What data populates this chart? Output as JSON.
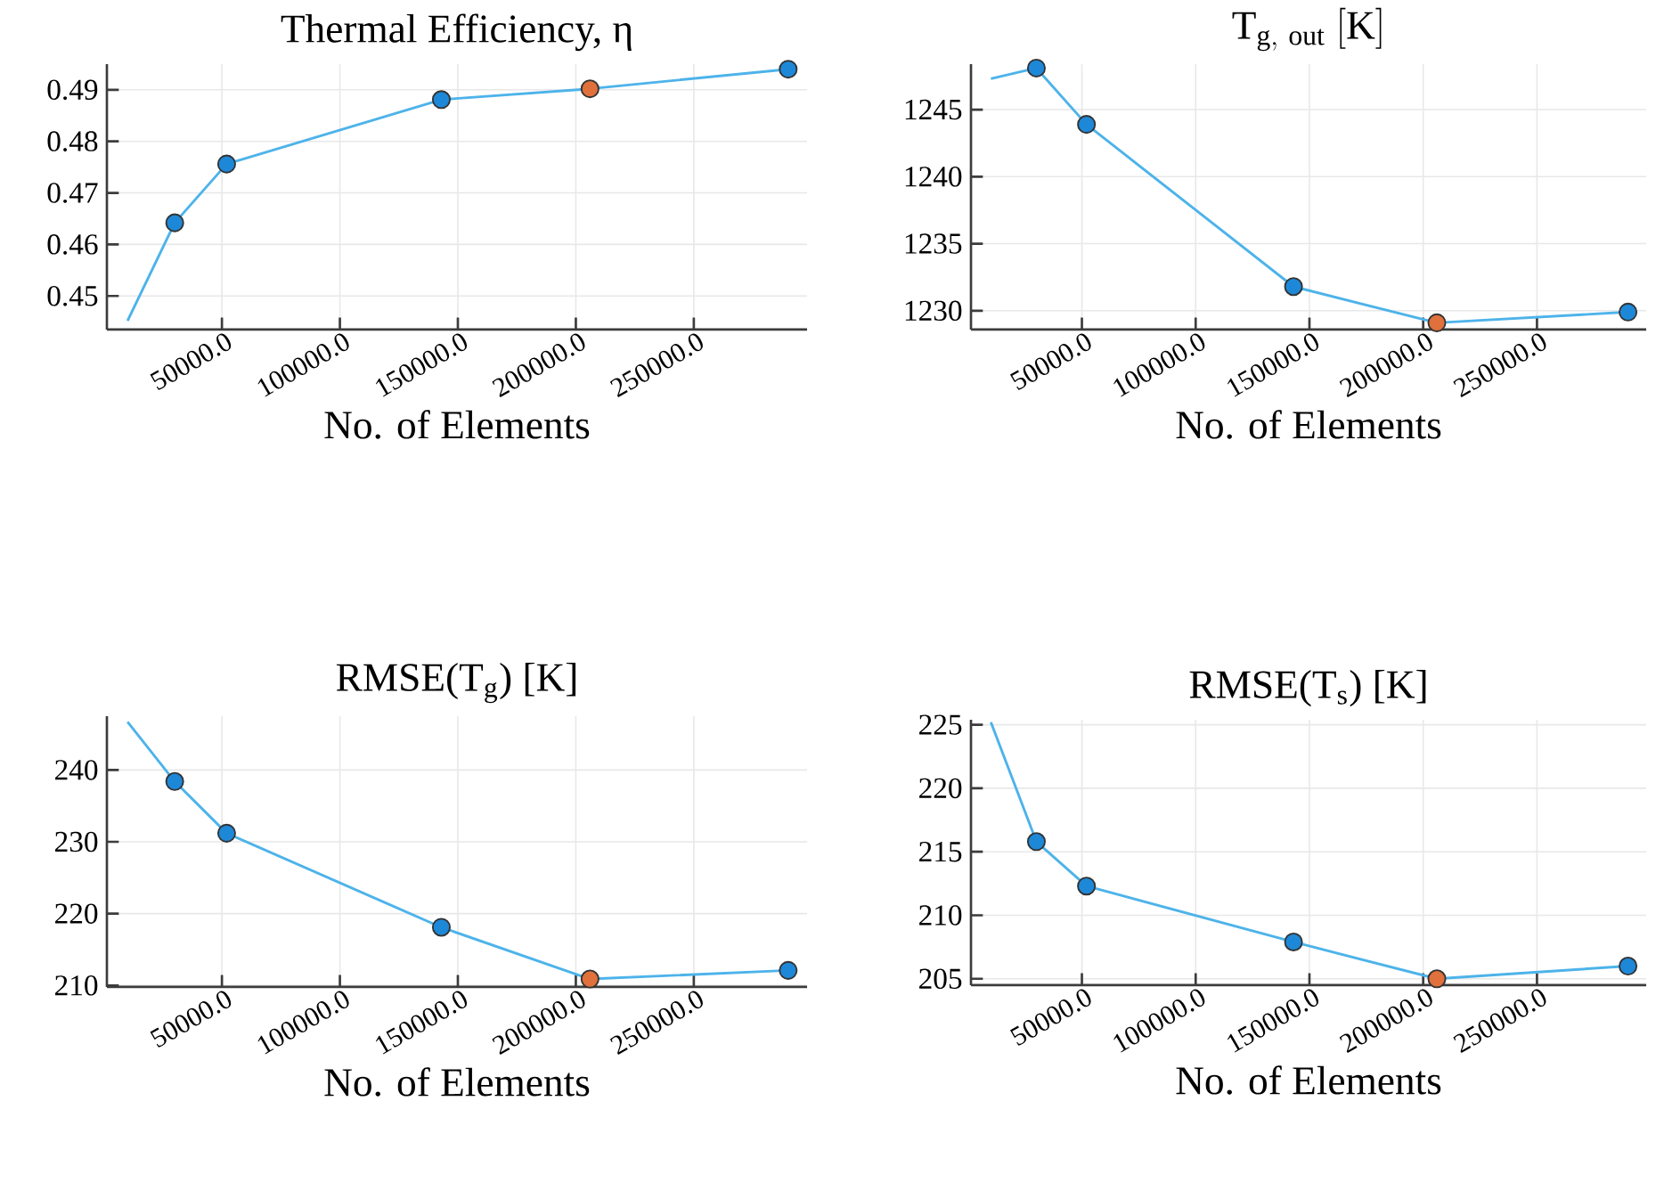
{
  "chart_data": [
    {
      "type": "line",
      "title": "Thermal Efficiency, η",
      "xlabel": "No. of Elements",
      "xlim": [
        1250,
        298000
      ],
      "ylim": [
        0.4435,
        0.495
      ],
      "grid": true,
      "xticks": [
        {
          "value": 50000,
          "label": "50000.0"
        },
        {
          "value": 100000,
          "label": "100000.0"
        },
        {
          "value": 150000,
          "label": "150000.0"
        },
        {
          "value": 200000,
          "label": "200000.0"
        },
        {
          "value": 250000,
          "label": "250000.0"
        }
      ],
      "yticks": [
        0.45,
        0.46,
        0.47,
        0.48,
        0.49
      ],
      "series": [
        {
          "color": "#4db3ea",
          "x": [
            10000,
            30000,
            52000,
            143000,
            206000,
            290000
          ],
          "values": [
            0.4452,
            0.4642,
            0.4756,
            0.4881,
            0.4902,
            0.494
          ]
        },
        {
          "type": "scatter",
          "marker": "circle",
          "color": "#1e88d8",
          "x": [
            30000,
            52000,
            143000,
            290000
          ],
          "values": [
            0.4642,
            0.4756,
            0.4881,
            0.494
          ]
        },
        {
          "type": "scatter",
          "marker": "circle",
          "color": "#e0703c",
          "x": [
            206000
          ],
          "values": [
            0.4902
          ]
        }
      ]
    },
    {
      "type": "line",
      "title": "\\mathrm{T}_{\\mathrm{g,\\ out}}\\ [\\mathrm{K}]",
      "xlabel": "No. of Elements",
      "xlim": [
        1250,
        298000
      ],
      "ylim": [
        1228.6,
        1248.4
      ],
      "grid": true,
      "xticks": [
        {
          "value": 50000,
          "label": "50000.0"
        },
        {
          "value": 100000,
          "label": "100000.0"
        },
        {
          "value": 150000,
          "label": "150000.0"
        },
        {
          "value": 200000,
          "label": "200000.0"
        },
        {
          "value": 250000,
          "label": "250000.0"
        }
      ],
      "yticks": [
        1230,
        1235,
        1240,
        1245
      ],
      "series": [
        {
          "type": "line",
          "color": "#4db3ea",
          "x": [
            10000,
            30000,
            52000,
            143000,
            206000,
            290000
          ],
          "values": [
            1247.3,
            1248.1,
            1243.9,
            1231.8,
            1229.1,
            1229.9
          ]
        },
        {
          "type": "scatter",
          "marker": "circle",
          "color": "#1e88d8",
          "x": [
            30000,
            52000,
            143000,
            290000
          ],
          "values": [
            1248.1,
            1243.9,
            1231.8,
            1229.9
          ]
        },
        {
          "type": "scatter",
          "marker": "circle",
          "color": "#e0703c",
          "x": [
            206000
          ],
          "values": [
            1229.1
          ]
        }
      ]
    },
    {
      "type": "line",
      "title": "RMSE(T$_{g}$) [K]",
      "xlabel": "No. of Elements",
      "xlim": [
        1250,
        298000
      ],
      "ylim": [
        209.8,
        247.5
      ],
      "grid": true,
      "xticks": [
        {
          "value": 50000,
          "label": "50000.0"
        },
        {
          "value": 100000,
          "label": "100000.0"
        },
        {
          "value": 150000,
          "label": "150000.0"
        },
        {
          "value": 200000,
          "label": "200000.0"
        },
        {
          "value": 250000,
          "label": "250000.0"
        }
      ],
      "yticks": [
        210,
        220,
        230,
        240
      ],
      "series": [
        {
          "type": "line",
          "color": "#4db3ea",
          "x": [
            10000,
            30000,
            52000,
            143000,
            206000,
            290000
          ],
          "values": [
            246.7,
            238.4,
            231.2,
            218.1,
            210.9,
            212.1
          ]
        },
        {
          "type": "scatter",
          "marker": "circle",
          "color": "#1e88d8",
          "x": [
            30000,
            52000,
            143000,
            290000
          ],
          "values": [
            238.4,
            231.2,
            218.1,
            212.1
          ]
        },
        {
          "type": "scatter",
          "marker": "circle",
          "color": "#e0703c",
          "x": [
            206000
          ],
          "values": [
            210.9
          ]
        }
      ]
    },
    {
      "type": "line",
      "title": "RMSE(T$_{s}$) [K]",
      "xlabel": "No. of Elements",
      "xlim": [
        1250,
        298000
      ],
      "ylim": [
        204.5,
        225.4
      ],
      "grid": true,
      "xticks": [
        {
          "value": 50000,
          "label": "50000.0"
        },
        {
          "value": 100000,
          "label": "100000.0"
        },
        {
          "value": 150000,
          "label": "150000.0"
        },
        {
          "value": 200000,
          "label": "200000.0"
        },
        {
          "value": 250000,
          "label": "250000.0"
        }
      ],
      "yticks": [
        205,
        210,
        215,
        220,
        225
      ],
      "series": [
        {
          "type": "line",
          "color": "#4db3ea",
          "x": [
            10000,
            30000,
            52000,
            143000,
            206000,
            290000
          ],
          "values": [
            225.2,
            215.8,
            212.3,
            207.9,
            205.0,
            206.0
          ]
        },
        {
          "type": "scatter",
          "marker": "circle",
          "color": "#1e88d8",
          "x": [
            30000,
            52000,
            143000,
            290000
          ],
          "values": [
            215.8,
            212.3,
            207.9,
            206.0
          ]
        },
        {
          "type": "scatter",
          "marker": "circle",
          "color": "#e0703c",
          "x": [
            206000
          ],
          "values": [
            205.0
          ]
        }
      ]
    }
  ]
}
